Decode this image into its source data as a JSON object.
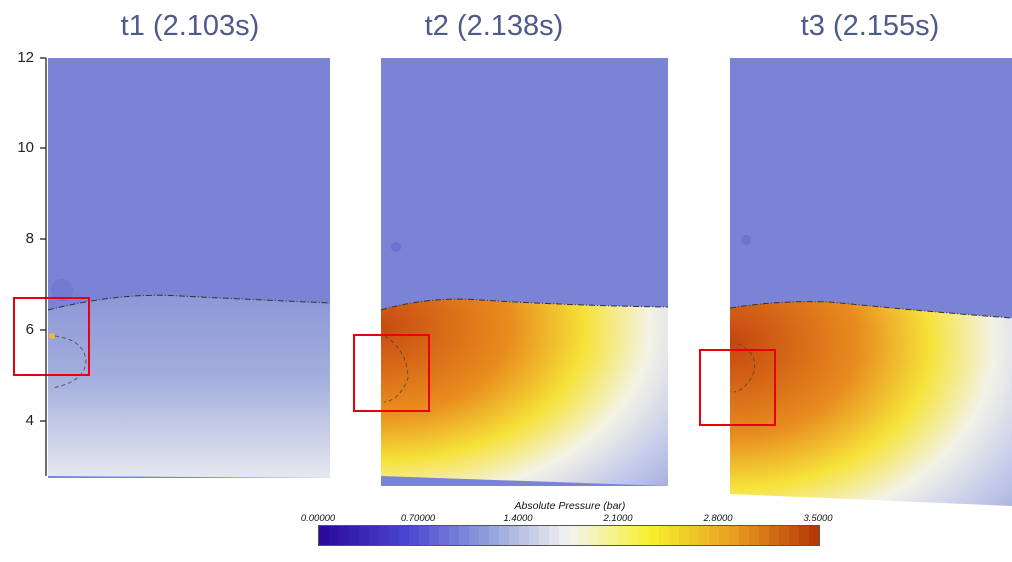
{
  "panels": [
    {
      "title": "t1 (2.103s)"
    },
    {
      "title": "t2 (2.138s)"
    },
    {
      "title": "t3 (2.155s)"
    }
  ],
  "y_axis": {
    "ticks": [
      "12",
      "10",
      "8",
      "6",
      "4"
    ]
  },
  "colorbar": {
    "title": "Absolute Pressure (bar)",
    "ticks": [
      "0.00000",
      "0.70000",
      "1.4000",
      "2.1000",
      "2.8000",
      "3.5000"
    ],
    "min": 0.0,
    "max": 3.5,
    "colors": [
      "#2a0b9e",
      "#4a44d0",
      "#8e9fdc",
      "#f4f4f2",
      "#f6f02e",
      "#e9a021",
      "#b73a06"
    ]
  },
  "colors": {
    "atmosphere": "#7a83d4",
    "highlight_box": "#e8000b",
    "title_text": "#4f5a8c"
  }
}
